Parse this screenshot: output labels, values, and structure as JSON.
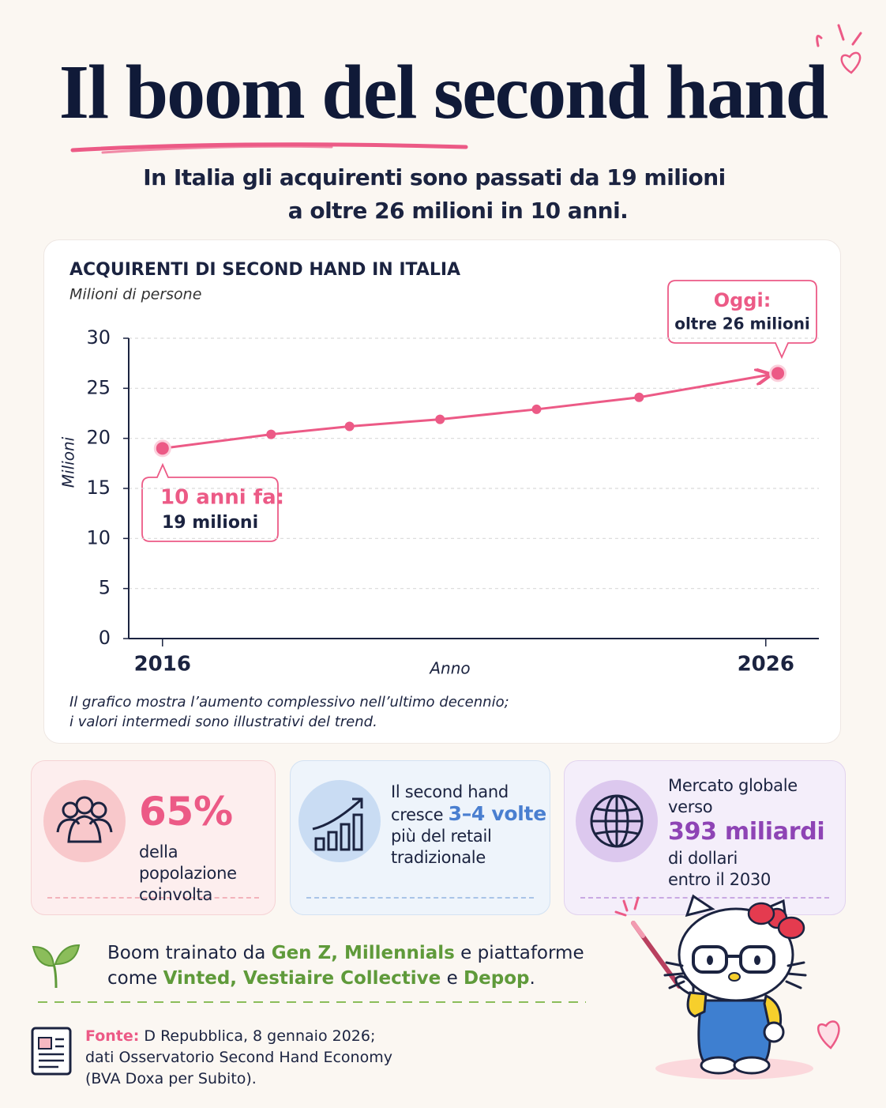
{
  "title": "Il boom del second hand",
  "subtitle": [
    "In Italia gli acquirenti sono passati da 19 milioni",
    "a oltre 26 milioni in 10 anni."
  ],
  "chart_data": {
    "type": "line",
    "title": "ACQUIRENTI DI SECOND HAND IN ITALIA",
    "subtitle": "Milioni di persone",
    "y_label": "Milioni",
    "x_label": "Anno",
    "x": [
      2016,
      2017.8,
      2019.1,
      2020.6,
      2022.2,
      2023.9,
      2026.2
    ],
    "values": [
      19.0,
      20.4,
      21.2,
      21.9,
      22.9,
      24.1,
      26.5
    ],
    "color": "#ec5a86",
    "xlim": [
      2015.44,
      2026.88
    ],
    "xticks": [
      2016,
      2026
    ],
    "ylim": [
      0,
      30
    ],
    "yticks": [
      0,
      5,
      10,
      15,
      20,
      25,
      30
    ],
    "grid": true,
    "annotations": [
      {
        "title": "10 anni fa:",
        "text": "19 milioni"
      },
      {
        "title": "Oggi:",
        "text": "oltre 26 milioni"
      }
    ],
    "note": [
      "Il grafico mostra l’aumento complessivo nell’ultimo decennio;",
      "i valori intermedi sono illustrativi del trend."
    ]
  },
  "stats": [
    {
      "color": "#ec5a86",
      "lines": [
        [
          {
            "text": "65%",
            "highlight": true
          }
        ],
        [
          {
            "text": "della popolazione"
          }
        ],
        [
          {
            "text": "coinvolta"
          }
        ]
      ]
    },
    {
      "color": "#4a7fd0",
      "lines": [
        [
          {
            "text": "Il second hand"
          }
        ],
        [
          {
            "text": "cresce "
          },
          {
            "text": "3–4 volte",
            "highlight": true
          }
        ],
        [
          {
            "text": "più del retail"
          }
        ],
        [
          {
            "text": "tradizionale"
          }
        ]
      ]
    },
    {
      "color": "#8e44b5",
      "lines": [
        [
          {
            "text": "Mercato globale"
          }
        ],
        [
          {
            "text": "verso"
          }
        ],
        [
          {
            "text": "393 miliardi",
            "highlight": true
          }
        ],
        [
          {
            "text": "di dollari"
          }
        ],
        [
          {
            "text": "entro il 2030"
          }
        ]
      ]
    }
  ],
  "drivers": {
    "color": "#5f9a3a",
    "lines": [
      [
        {
          "text": "Boom trainato da "
        },
        {
          "text": "Gen Z, Millennials",
          "highlight": true
        },
        {
          "text": " e piattaforme"
        }
      ],
      [
        {
          "text": "come "
        },
        {
          "text": "Vinted, Vestiaire Collective",
          "highlight": true
        },
        {
          "text": " e "
        },
        {
          "text": "Depop",
          "highlight": true
        },
        {
          "text": "."
        }
      ]
    ]
  },
  "source": {
    "label": "Fonte:",
    "lines": [
      " D Repubblica, 8 gennaio 2026;",
      "dati Osservatorio Second Hand Economy",
      "(BVA Doxa per Subito)."
    ]
  }
}
